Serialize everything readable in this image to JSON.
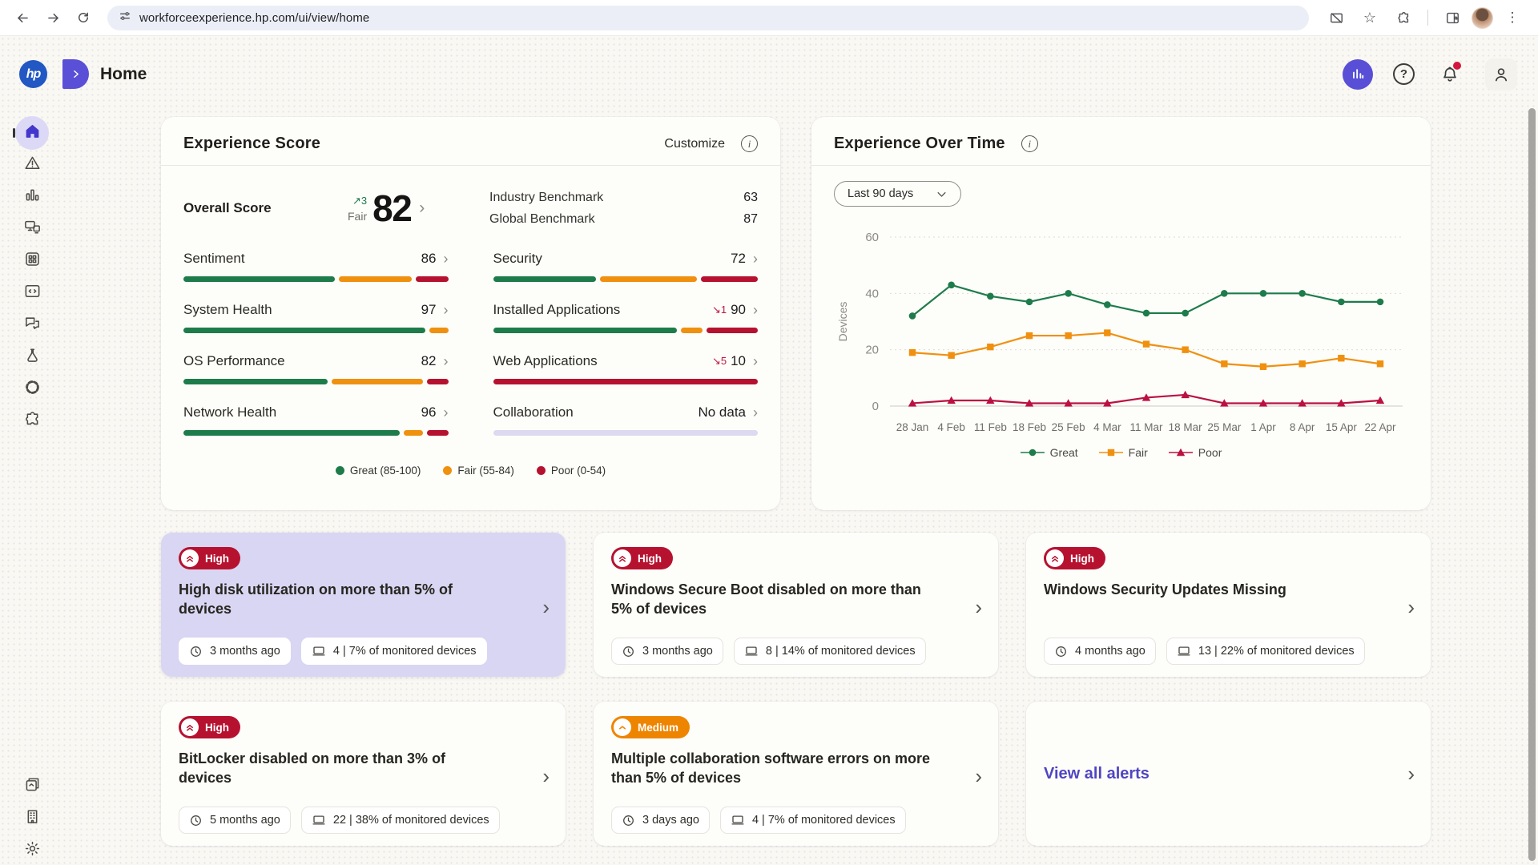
{
  "browser": {
    "url": "workforceexperience.hp.com/ui/view/home"
  },
  "header": {
    "logo_text": "hp",
    "title": "Home"
  },
  "sidebar": {
    "top": [
      {
        "name": "home",
        "active": true
      },
      {
        "name": "alerts"
      },
      {
        "name": "analytics"
      },
      {
        "name": "devices"
      },
      {
        "name": "applications"
      },
      {
        "name": "scripts"
      },
      {
        "name": "messages"
      },
      {
        "name": "experiments"
      },
      {
        "name": "integrations"
      },
      {
        "name": "add-ons"
      }
    ],
    "bottom": [
      {
        "name": "resources"
      },
      {
        "name": "organization"
      },
      {
        "name": "settings"
      }
    ]
  },
  "experience_score": {
    "title": "Experience Score",
    "customize_label": "Customize",
    "overall": {
      "label": "Overall Score",
      "trend_arrow": "↗",
      "trend_value": "3",
      "rating": "Fair",
      "score": "82"
    },
    "benchmarks": [
      {
        "label": "Industry Benchmark",
        "value": "63"
      },
      {
        "label": "Global Benchmark",
        "value": "87"
      }
    ],
    "metrics": [
      {
        "label": "Sentiment",
        "value": "86",
        "segments": [
          [
            "great",
            56
          ],
          [
            "fair",
            27
          ],
          [
            "poor",
            12
          ]
        ]
      },
      {
        "label": "Security",
        "value": "72",
        "segments": [
          [
            "great",
            38
          ],
          [
            "fair",
            36
          ],
          [
            "poor",
            21
          ]
        ]
      },
      {
        "label": "System Health",
        "value": "97",
        "segments": [
          [
            "great",
            90
          ],
          [
            "fair",
            7
          ]
        ]
      },
      {
        "label": "Installed Applications",
        "value": "90",
        "trend_arrow": "↘",
        "trend_value": "1",
        "segments": [
          [
            "great",
            68
          ],
          [
            "fair",
            8
          ],
          [
            "poor",
            19
          ]
        ]
      },
      {
        "label": "OS Performance",
        "value": "82",
        "segments": [
          [
            "great",
            54
          ],
          [
            "fair",
            34
          ],
          [
            "poor",
            8
          ]
        ]
      },
      {
        "label": "Web Applications",
        "value": "10",
        "trend_arrow": "↘",
        "trend_value": "5",
        "segments": [
          [
            "poor",
            100
          ]
        ]
      },
      {
        "label": "Network Health",
        "value": "96",
        "segments": [
          [
            "great",
            81
          ],
          [
            "fair",
            7
          ],
          [
            "poor",
            8
          ]
        ]
      },
      {
        "label": "Collaboration",
        "value": "No data",
        "no_data": true,
        "segments": [
          [
            "none",
            100
          ]
        ]
      }
    ],
    "legend": [
      {
        "label": "Great (85-100)",
        "color_key": "great"
      },
      {
        "label": "Fair (55-84)",
        "color_key": "fair"
      },
      {
        "label": "Poor (0-54)",
        "color_key": "poor"
      }
    ]
  },
  "chart_data": {
    "type": "line",
    "title": "Experience Over Time",
    "range_label": "Last 90 days",
    "ylabel": "Devices",
    "ylim": [
      0,
      60
    ],
    "yticks": [
      0,
      20,
      40,
      60
    ],
    "x": [
      "28 Jan",
      "4 Feb",
      "11 Feb",
      "18 Feb",
      "25 Feb",
      "4 Mar",
      "11 Mar",
      "18 Mar",
      "25 Mar",
      "1 Apr",
      "8 Apr",
      "15 Apr",
      "22 Apr"
    ],
    "series": [
      {
        "name": "Great",
        "marker": "circle",
        "color": "#1e7c4b",
        "values": [
          32,
          43,
          39,
          37,
          40,
          36,
          33,
          33,
          40,
          40,
          40,
          37,
          37
        ]
      },
      {
        "name": "Fair",
        "marker": "square",
        "color": "#f0900f",
        "values": [
          19,
          18,
          21,
          25,
          25,
          26,
          22,
          20,
          15,
          14,
          15,
          17,
          15
        ]
      },
      {
        "name": "Poor",
        "marker": "triangle",
        "color": "#bb1140",
        "values": [
          1,
          2,
          2,
          1,
          1,
          1,
          3,
          4,
          1,
          1,
          1,
          1,
          2
        ]
      }
    ],
    "legend_position": "bottom",
    "grid": true
  },
  "alerts": {
    "cards": [
      {
        "severity": "High",
        "title": "High disk utilization on more than 5% of devices",
        "age": "3 months ago",
        "devices": "4 | 7% of monitored devices",
        "selected": true
      },
      {
        "severity": "High",
        "title": "Windows Secure Boot disabled on more than 5% of devices",
        "age": "3 months ago",
        "devices": "8 | 14% of monitored devices"
      },
      {
        "severity": "High",
        "title": "Windows Security Updates Missing",
        "age": "4 months ago",
        "devices": "13 | 22% of monitored devices"
      },
      {
        "severity": "High",
        "title": "BitLocker disabled on more than 3% of devices",
        "age": "5 months ago",
        "devices": "22 | 38% of monitored devices"
      },
      {
        "severity": "Medium",
        "title": "Multiple collaboration software errors on more than 5% of devices",
        "age": "3 days ago",
        "devices": "4 | 7% of monitored devices"
      },
      {
        "view_all": "View all alerts"
      }
    ]
  },
  "colors": {
    "great": "#1e7c4b",
    "fair": "#f0900f",
    "poor": "#b61230",
    "none": "#dcd9f0",
    "accent_purple": "#584fd6",
    "severity_high": "#b6122f",
    "severity_medium": "#ee8500",
    "link_purple": "#4f46c2",
    "selected_card": "#d9d6f3"
  }
}
